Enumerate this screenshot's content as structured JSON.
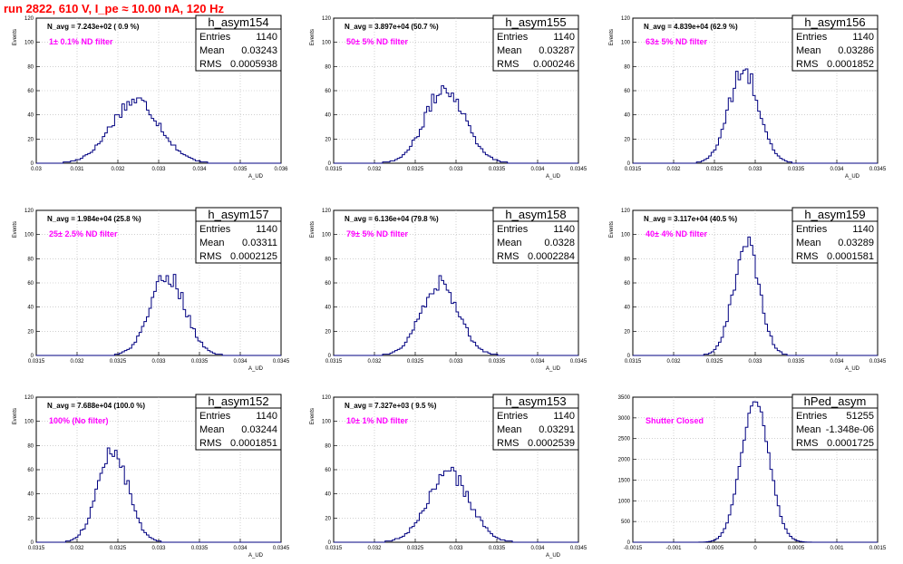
{
  "run_title": "run 2822,   610 V, I_pe ≈ 10.00 nA, 120 Hz",
  "colors": {
    "title": "#ff0000",
    "histogram": "#000080",
    "annotation": "#ff00ff",
    "grid": "#b4b4b4"
  },
  "chart_data": [
    {
      "type": "histogram",
      "name": "h_asym154",
      "title": "h_asym154",
      "stats": {
        "Entries": "1140",
        "Mean": "0.03243",
        "RMS": "0.0005938"
      },
      "annotation": "N_avg = 7.243e+02 ( 0.9 %)",
      "filter_label": "1± 0.1% ND filter",
      "xlabel": "A_UD",
      "ylabel": "Events",
      "xlim": [
        0.03,
        0.036
      ],
      "ylim": [
        0,
        120
      ],
      "xticks": [
        0.03,
        0.031,
        0.032,
        0.033,
        0.034,
        0.035,
        0.036
      ],
      "xtick_labels": [
        "0.03",
        "0.031",
        "0.032",
        "0.033",
        "0.034",
        "0.035",
        "0.036"
      ],
      "yticks": [
        0,
        20,
        40,
        60,
        80,
        100,
        120
      ],
      "peak": {
        "mean": 0.03243,
        "sigma": 0.000594,
        "height": 52
      }
    },
    {
      "type": "histogram",
      "name": "h_asym155",
      "title": "h_asym155",
      "stats": {
        "Entries": "1140",
        "Mean": "0.03287",
        "RMS": "0.000246"
      },
      "annotation": "N_avg = 3.897e+04 (50.7 %)",
      "filter_label": "50± 5% ND filter",
      "xlabel": "A_UD",
      "ylabel": "Events",
      "xlim": [
        0.0315,
        0.0345
      ],
      "ylim": [
        0,
        120
      ],
      "xticks": [
        0.0315,
        0.032,
        0.0325,
        0.033,
        0.0335,
        0.034,
        0.0345
      ],
      "xtick_labels": [
        "0.0315",
        "0.032",
        "0.0325",
        "0.033",
        "0.0335",
        "0.034",
        "0.0345"
      ],
      "yticks": [
        0,
        20,
        40,
        60,
        80,
        100,
        120
      ],
      "peak": {
        "mean": 0.03287,
        "sigma": 0.000246,
        "height": 62
      }
    },
    {
      "type": "histogram",
      "name": "h_asym156",
      "title": "h_asym156",
      "stats": {
        "Entries": "1140",
        "Mean": "0.03286",
        "RMS": "0.0001852"
      },
      "annotation": "N_avg = 4.839e+04 (62.9 %)",
      "filter_label": "63± 5% ND filter",
      "xlabel": "A_UD",
      "ylabel": "Events",
      "xlim": [
        0.0315,
        0.0345
      ],
      "ylim": [
        0,
        120
      ],
      "xticks": [
        0.0315,
        0.032,
        0.0325,
        0.033,
        0.0335,
        0.034,
        0.0345
      ],
      "xtick_labels": [
        "0.0315",
        "0.032",
        "0.0325",
        "0.033",
        "0.0335",
        "0.034",
        "0.0345"
      ],
      "yticks": [
        0,
        20,
        40,
        60,
        80,
        100,
        120
      ],
      "peak": {
        "mean": 0.03286,
        "sigma": 0.000185,
        "height": 76
      }
    },
    {
      "type": "histogram",
      "name": "h_asym157",
      "title": "h_asym157",
      "stats": {
        "Entries": "1140",
        "Mean": "0.03311",
        "RMS": "0.0002125"
      },
      "annotation": "N_avg = 1.984e+04 (25.8 %)",
      "filter_label": "25± 2.5% ND filter",
      "xlabel": "A_UD",
      "ylabel": "Events",
      "xlim": [
        0.0315,
        0.0345
      ],
      "ylim": [
        0,
        120
      ],
      "xticks": [
        0.0315,
        0.032,
        0.0325,
        0.033,
        0.0335,
        0.034,
        0.0345
      ],
      "xtick_labels": [
        "0.0315",
        "0.032",
        "0.0325",
        "0.033",
        "0.0335",
        "0.034",
        "0.0345"
      ],
      "yticks": [
        0,
        20,
        40,
        60,
        80,
        100,
        120
      ],
      "peak": {
        "mean": 0.03311,
        "sigma": 0.000213,
        "height": 66
      }
    },
    {
      "type": "histogram",
      "name": "h_asym158",
      "title": "h_asym158",
      "stats": {
        "Entries": "1140",
        "Mean": "0.0328",
        "RMS": "0.0002284"
      },
      "annotation": "N_avg = 6.136e+04 (79.8 %)",
      "filter_label": "79± 5% ND filter",
      "xlabel": "A_UD",
      "ylabel": "Events",
      "xlim": [
        0.0315,
        0.0345
      ],
      "ylim": [
        0,
        120
      ],
      "xticks": [
        0.0315,
        0.032,
        0.0325,
        0.033,
        0.0335,
        0.034,
        0.0345
      ],
      "xtick_labels": [
        "0.0315",
        "0.032",
        "0.0325",
        "0.033",
        "0.0335",
        "0.034",
        "0.0345"
      ],
      "yticks": [
        0,
        20,
        40,
        60,
        80,
        100,
        120
      ],
      "peak": {
        "mean": 0.0328,
        "sigma": 0.000228,
        "height": 60
      }
    },
    {
      "type": "histogram",
      "name": "h_asym159",
      "title": "h_asym159",
      "stats": {
        "Entries": "1140",
        "Mean": "0.03289",
        "RMS": "0.0001581"
      },
      "annotation": "N_avg = 3.117e+04 (40.5 %)",
      "filter_label": "40± 4% ND filter",
      "xlabel": "A_UD",
      "ylabel": "Events",
      "xlim": [
        0.0315,
        0.0345
      ],
      "ylim": [
        0,
        120
      ],
      "xticks": [
        0.0315,
        0.032,
        0.0325,
        0.033,
        0.0335,
        0.034,
        0.0345
      ],
      "xtick_labels": [
        "0.0315",
        "0.032",
        "0.0325",
        "0.033",
        "0.0335",
        "0.034",
        "0.0345"
      ],
      "yticks": [
        0,
        20,
        40,
        60,
        80,
        100,
        120
      ],
      "peak": {
        "mean": 0.03289,
        "sigma": 0.000158,
        "height": 92
      }
    },
    {
      "type": "histogram",
      "name": "h_asym152",
      "title": "h_asym152",
      "stats": {
        "Entries": "1140",
        "Mean": "0.03244",
        "RMS": "0.0001851"
      },
      "annotation": "N_avg = 7.688e+04 (100.0 %)",
      "filter_label": "100% (No filter)",
      "xlabel": "A_UD",
      "ylabel": "Events",
      "xlim": [
        0.0315,
        0.0345
      ],
      "ylim": [
        0,
        120
      ],
      "xticks": [
        0.0315,
        0.032,
        0.0325,
        0.033,
        0.0335,
        0.034,
        0.0345
      ],
      "xtick_labels": [
        "0.0315",
        "0.032",
        "0.0325",
        "0.033",
        "0.0335",
        "0.034",
        "0.0345"
      ],
      "yticks": [
        0,
        20,
        40,
        60,
        80,
        100,
        120
      ],
      "peak": {
        "mean": 0.03244,
        "sigma": 0.000185,
        "height": 76
      }
    },
    {
      "type": "histogram",
      "name": "h_asym153",
      "title": "h_asym153",
      "stats": {
        "Entries": "1140",
        "Mean": "0.03291",
        "RMS": "0.0002539"
      },
      "annotation": "N_avg = 7.327e+03 ( 9.5 %)",
      "filter_label": "10± 1% ND filter",
      "xlabel": "A_UD",
      "ylabel": "Events",
      "xlim": [
        0.0315,
        0.0345
      ],
      "ylim": [
        0,
        120
      ],
      "xticks": [
        0.0315,
        0.032,
        0.0325,
        0.033,
        0.0335,
        0.034,
        0.0345
      ],
      "xtick_labels": [
        "0.0315",
        "0.032",
        "0.0325",
        "0.033",
        "0.0335",
        "0.034",
        "0.0345"
      ],
      "yticks": [
        0,
        20,
        40,
        60,
        80,
        100,
        120
      ],
      "peak": {
        "mean": 0.03291,
        "sigma": 0.000254,
        "height": 57
      }
    },
    {
      "type": "histogram",
      "name": "hPed_asym",
      "title": "hPed_asym",
      "stats": {
        "Entries": "51255",
        "Mean": "-1.348e-06",
        "RMS": "0.0001725"
      },
      "annotation": "",
      "filter_label": "Shutter Closed",
      "xlabel": "",
      "ylabel": "",
      "xlim": [
        -0.0015,
        0.0015
      ],
      "ylim": [
        0,
        3500
      ],
      "xticks": [
        -0.0015,
        -0.001,
        -0.0005,
        0,
        0.0005,
        0.001,
        0.0015
      ],
      "xtick_labels": [
        "-0.0015",
        "-0.001",
        "-0.0005",
        "0",
        "0.0005",
        "0.001",
        "0.0015"
      ],
      "yticks": [
        0,
        500,
        1000,
        1500,
        2000,
        2500,
        3000,
        3500
      ],
      "peak": {
        "mean": -1.348e-06,
        "sigma": 0.0001725,
        "height": 3420
      }
    }
  ]
}
